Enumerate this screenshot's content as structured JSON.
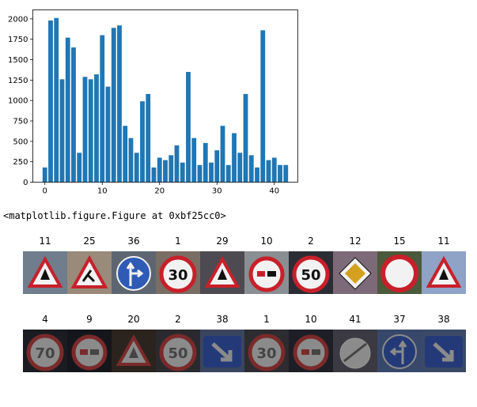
{
  "chart_data": {
    "type": "bar",
    "x": [
      0,
      1,
      2,
      3,
      4,
      5,
      6,
      7,
      8,
      9,
      10,
      11,
      12,
      13,
      14,
      15,
      16,
      17,
      18,
      19,
      20,
      21,
      22,
      23,
      24,
      25,
      26,
      27,
      28,
      29,
      30,
      31,
      32,
      33,
      34,
      35,
      36,
      37,
      38,
      39,
      40,
      41,
      42
    ],
    "values": [
      180,
      1980,
      2010,
      1260,
      1770,
      1650,
      360,
      1290,
      1260,
      1320,
      1800,
      1170,
      1890,
      1920,
      690,
      540,
      360,
      990,
      1080,
      180,
      300,
      270,
      330,
      450,
      240,
      1350,
      540,
      210,
      480,
      240,
      390,
      690,
      210,
      600,
      360,
      1080,
      330,
      180,
      1860,
      270,
      300,
      210,
      210
    ],
    "xticks": [
      "0",
      "10",
      "20",
      "30",
      "40"
    ],
    "yticks": [
      "0",
      "250",
      "500",
      "750",
      "1000",
      "1250",
      "1500",
      "1750",
      "2000"
    ],
    "xlim": [
      -2.1,
      44.1
    ],
    "ylim": [
      0,
      2110
    ],
    "bar_color": "#1f77b4",
    "title": "",
    "xlabel": "",
    "ylabel": ""
  },
  "output_text": "<matplotlib.figure.Figure at 0xbf25cc0>",
  "sample_rows": [
    [
      {
        "label": "11",
        "icon": "red-triangle-warning-sign"
      },
      {
        "label": "25",
        "icon": "roadworks-triangle-sign"
      },
      {
        "label": "36",
        "icon": "blue-straight-or-right-sign"
      },
      {
        "label": "1",
        "icon": "speed-limit-30-sign"
      },
      {
        "label": "29",
        "icon": "red-triangle-warning-sign"
      },
      {
        "label": "10",
        "icon": "no-overtaking-trucks-sign"
      },
      {
        "label": "2",
        "icon": "speed-limit-50-sign"
      },
      {
        "label": "12",
        "icon": "priority-road-sign"
      },
      {
        "label": "15",
        "icon": "no-vehicles-sign"
      },
      {
        "label": "11",
        "icon": "red-triangle-warning-sign"
      }
    ],
    [
      {
        "label": "4",
        "icon": "speed-limit-70-sign"
      },
      {
        "label": "9",
        "icon": "no-overtaking-sign"
      },
      {
        "label": "20",
        "icon": "red-triangle-warning-sign"
      },
      {
        "label": "2",
        "icon": "speed-limit-50-sign"
      },
      {
        "label": "38",
        "icon": "keep-right-sign"
      },
      {
        "label": "1",
        "icon": "speed-limit-30-sign"
      },
      {
        "label": "10",
        "icon": "no-overtaking-trucks-sign"
      },
      {
        "label": "41",
        "icon": "end-of-no-overtaking-sign"
      },
      {
        "label": "37",
        "icon": "blue-straight-or-left-sign"
      },
      {
        "label": "38",
        "icon": "keep-right-sign"
      }
    ]
  ]
}
